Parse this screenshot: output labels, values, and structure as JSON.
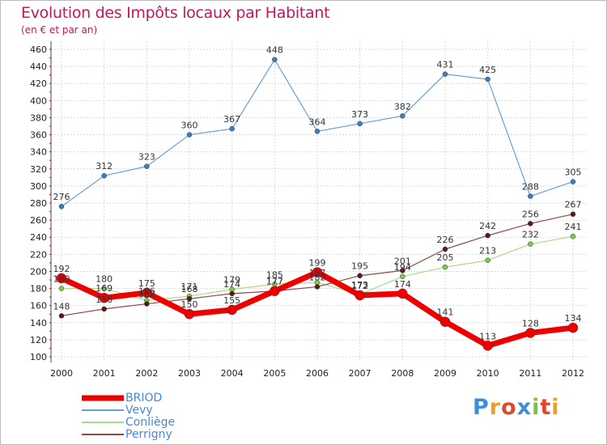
{
  "chart_data": {
    "type": "line",
    "title": "Evolution des Impôts locaux par Habitant",
    "subtitle": "(en € et par an)",
    "xlabel": "",
    "ylabel": "",
    "ylim": [
      100,
      460
    ],
    "yticks": [
      100,
      120,
      140,
      160,
      180,
      200,
      220,
      240,
      260,
      280,
      300,
      320,
      340,
      360,
      380,
      400,
      420,
      440,
      460
    ],
    "categories": [
      "2000",
      "2001",
      "2002",
      "2003",
      "2004",
      "2005",
      "2006",
      "2007",
      "2008",
      "2009",
      "2010",
      "2011",
      "2012"
    ],
    "grid": true,
    "legend_position": "bottom-left",
    "series": [
      {
        "name": "Vevy",
        "color": "#6a9fd4",
        "marker": "#3c7ec4",
        "values": [
          276,
          312,
          323,
          360,
          367,
          448,
          364,
          373,
          382,
          431,
          425,
          288,
          305
        ]
      },
      {
        "name": "Conliège",
        "color": "#a8dc86",
        "marker": "#7ccd44",
        "values": [
          180,
          180,
          166,
          171,
          179,
          185,
          187,
          173,
          194,
          205,
          213,
          232,
          241
        ]
      },
      {
        "name": "Perrigny",
        "color": "#8a4a4a",
        "marker": "#5a1a1a",
        "values": [
          148,
          156,
          162,
          168,
          174,
          177,
          182,
          195,
          201,
          226,
          242,
          256,
          267
        ]
      },
      {
        "name": "BRIOD",
        "color": "#ee0000",
        "marker": "#ee0000",
        "values": [
          192,
          169,
          175,
          150,
          155,
          177,
          199,
          172,
          174,
          141,
          113,
          128,
          134
        ]
      }
    ],
    "data_labels": [
      [
        "276",
        "312",
        "323",
        "360",
        "367",
        "448",
        "364",
        "373",
        "382",
        "431",
        "425",
        "288",
        "305"
      ],
      [
        "180",
        "180",
        "166",
        "171",
        "179",
        "185",
        "187",
        "173",
        "194",
        "205",
        "213",
        "232",
        "241"
      ],
      [
        "148",
        "156",
        "162",
        "168",
        "174",
        "177",
        "182",
        "195",
        "201",
        "226",
        "242",
        "256",
        "267"
      ],
      [
        "192",
        "169",
        "175",
        "150",
        "155",
        "177",
        "199",
        "172",
        "174",
        "141",
        "113",
        "128",
        "134"
      ]
    ],
    "legend": [
      "BRIOD",
      "Vevy",
      "Conliège",
      "Perrigny"
    ]
  },
  "brand": [
    "P",
    "r",
    "o",
    "x",
    "i",
    "t",
    "i"
  ]
}
